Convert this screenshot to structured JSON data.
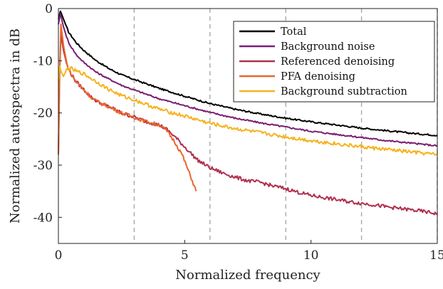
{
  "chart_data": {
    "type": "line",
    "xlabel": "Normalized frequency",
    "ylabel": "Normalized autospectra in dB",
    "xlim": [
      0,
      15
    ],
    "ylim": [
      -45,
      0
    ],
    "xticks": [
      0,
      5,
      10,
      15
    ],
    "yticks": [
      0,
      -10,
      -20,
      -30,
      -40
    ],
    "vlines": [
      3,
      6,
      9,
      12,
      15
    ],
    "grid": false,
    "legend_position": "top-right",
    "series": [
      {
        "name": "Total",
        "color": "#000000",
        "x": [
          0,
          0.08,
          0.2,
          0.4,
          0.7,
          1,
          1.5,
          2,
          2.5,
          3,
          4,
          5,
          6,
          7,
          8,
          9,
          10,
          11,
          12,
          13,
          14,
          15
        ],
        "y": [
          -2,
          -0.5,
          -2,
          -4.5,
          -6.5,
          -8,
          -10,
          -11.5,
          -12.7,
          -13.6,
          -15.3,
          -16.8,
          -18.2,
          -19.3,
          -20.2,
          -21,
          -21.7,
          -22.3,
          -22.9,
          -23.4,
          -23.9,
          -24.3
        ]
      },
      {
        "name": "Background noise",
        "color": "#7a1f73",
        "x": [
          0,
          0.08,
          0.2,
          0.4,
          0.7,
          1,
          1.5,
          2,
          2.5,
          3,
          4,
          5,
          6,
          7,
          8,
          9,
          10,
          11,
          12,
          13,
          14,
          15
        ],
        "y": [
          -3,
          -1,
          -3.5,
          -6.5,
          -8.8,
          -10.3,
          -12.2,
          -13.5,
          -14.7,
          -15.6,
          -17.3,
          -18.6,
          -19.9,
          -21,
          -21.9,
          -22.7,
          -23.5,
          -24.1,
          -24.7,
          -25.3,
          -25.8,
          -26.3
        ]
      },
      {
        "name": "Referenced denoising",
        "color": "#b0304f",
        "x": [
          0,
          0.05,
          0.1,
          0.2,
          0.35,
          0.5,
          0.7,
          1,
          1.3,
          1.6,
          2,
          2.5,
          3,
          3.5,
          4,
          4.3,
          4.6,
          4.9,
          5.2,
          5.5,
          6,
          6.5,
          7,
          7.5,
          8,
          8.5,
          9,
          9.5,
          10,
          10.5,
          11,
          11.5,
          12,
          12.5,
          13,
          13.5,
          14,
          14.5,
          15
        ],
        "y": [
          -28,
          -12,
          -5,
          -8,
          -11,
          -12.5,
          -14,
          -15.5,
          -17,
          -18,
          -18.8,
          -20,
          -20.8,
          -21.7,
          -22.3,
          -23.2,
          -24.5,
          -26,
          -27.5,
          -29,
          -30.5,
          -31.5,
          -32.3,
          -33,
          -33.3,
          -34,
          -34.5,
          -35.2,
          -35.8,
          -36.2,
          -36.6,
          -37,
          -37.3,
          -37.6,
          -38,
          -38.3,
          -38.6,
          -38.9,
          -39.3
        ]
      },
      {
        "name": "PFA denoising",
        "color": "#e8672a",
        "x": [
          0,
          0.05,
          0.1,
          0.2,
          0.35,
          0.5,
          0.7,
          1,
          1.3,
          1.6,
          2,
          2.5,
          3,
          3.5,
          4,
          4.3,
          4.6,
          4.9,
          5.1,
          5.3,
          5.45
        ],
        "y": [
          -28,
          -12,
          -3,
          -7,
          -11,
          -12.5,
          -14,
          -15.5,
          -17,
          -18,
          -18.8,
          -20,
          -20.8,
          -21.7,
          -22.3,
          -23.5,
          -25.5,
          -28,
          -30.5,
          -33,
          -35
        ]
      },
      {
        "name": "Background subtraction",
        "color": "#f6b21f",
        "x": [
          0,
          0.05,
          0.1,
          0.2,
          0.35,
          0.5,
          0.7,
          1,
          1.5,
          2,
          2.5,
          3,
          4,
          5,
          6,
          7,
          8,
          9,
          10,
          11,
          12,
          13,
          14,
          15
        ],
        "y": [
          -14,
          -11,
          -12,
          -13,
          -11.5,
          -11.5,
          -12,
          -12.5,
          -14,
          -15.5,
          -16.7,
          -17.5,
          -19.3,
          -20.6,
          -22,
          -23,
          -23.8,
          -24.6,
          -25.3,
          -25.9,
          -26.5,
          -27,
          -27.5,
          -28
        ]
      }
    ]
  }
}
